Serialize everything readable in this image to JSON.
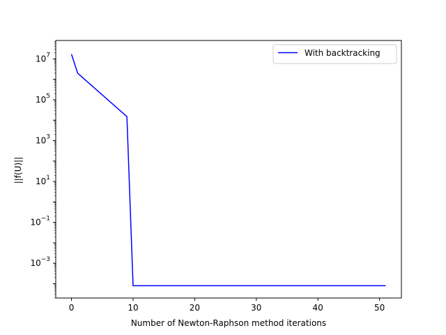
{
  "chart_data": {
    "type": "line",
    "title": "",
    "xlabel": "Number of Newton-Raphson method iterations",
    "ylabel": "||f(U)||",
    "xlim": [
      -2.55,
      53.55
    ],
    "ylim_log10": [
      -4.7,
      7.9
    ],
    "yscale": "log",
    "grid": false,
    "legend_placement": "top-right",
    "xticks": [
      {
        "value": 0,
        "label": "0"
      },
      {
        "value": 10,
        "label": "10"
      },
      {
        "value": 20,
        "label": "20"
      },
      {
        "value": 30,
        "label": "30"
      },
      {
        "value": 40,
        "label": "40"
      },
      {
        "value": 50,
        "label": "50"
      }
    ],
    "yticks": [
      {
        "exp": 7,
        "base": "10",
        "sup": "7"
      },
      {
        "exp": 5,
        "base": "10",
        "sup": "5"
      },
      {
        "exp": 3,
        "base": "10",
        "sup": "3"
      },
      {
        "exp": 1,
        "base": "10",
        "sup": "1"
      },
      {
        "exp": -1,
        "base": "10",
        "sup": "−1"
      },
      {
        "exp": -3,
        "base": "10",
        "sup": "−3"
      }
    ],
    "series": [
      {
        "name": "With backtracking",
        "color": "#0000ff",
        "x": [
          0,
          1,
          9,
          10,
          51
        ],
        "y": [
          17000000,
          2000000,
          15000,
          8e-05,
          8e-05
        ]
      }
    ]
  }
}
